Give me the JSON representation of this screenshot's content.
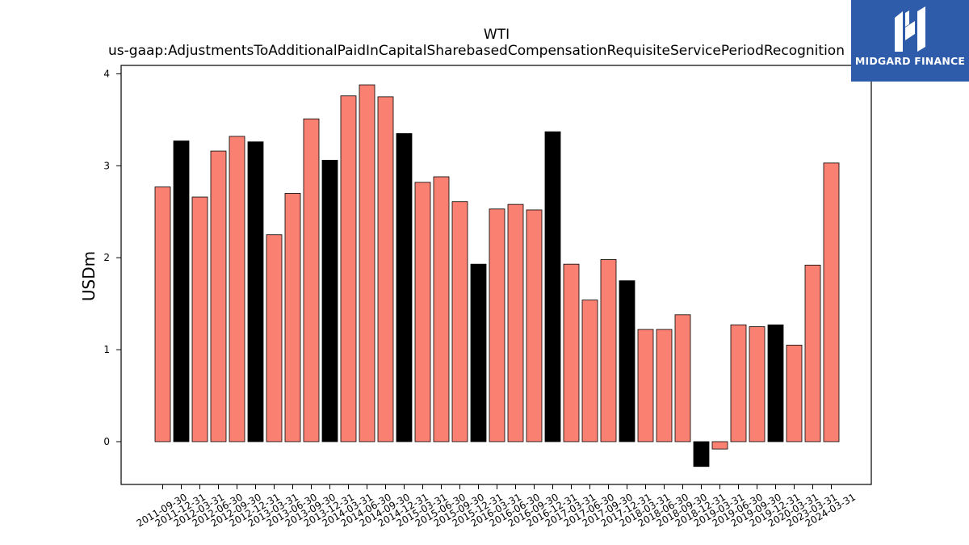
{
  "chart_data": {
    "type": "bar",
    "title": "WTI",
    "subtitle": "us-gaap:AdjustmentsToAdditionalPaidInCapitalSharebasedCompensationRequisiteServicePeriodRecognition",
    "ylabel": "USDm",
    "xlabel": "",
    "ylim": [
      -0.47,
      4.1
    ],
    "yticks": [
      0,
      1,
      2,
      3,
      4
    ],
    "colors": {
      "default": "#fa8072",
      "highlight": "#000000",
      "edge": "#000000"
    },
    "categories": [
      "2011-09-30",
      "2011-12-31",
      "2012-03-31",
      "2012-06-30",
      "2012-09-30",
      "2012-12-31",
      "2013-03-31",
      "2013-06-30",
      "2013-09-30",
      "2013-12-31",
      "2014-03-31",
      "2014-06-30",
      "2014-09-30",
      "2014-12-31",
      "2015-03-31",
      "2015-06-30",
      "2015-09-30",
      "2015-12-31",
      "2016-03-31",
      "2016-06-30",
      "2016-09-30",
      "2016-12-31",
      "2017-03-31",
      "2017-06-30",
      "2017-09-30",
      "2017-12-31",
      "2018-03-31",
      "2018-06-30",
      "2018-09-30",
      "2018-12-31",
      "2019-03-31",
      "2019-06-30",
      "2019-09-30",
      "2019-12-31",
      "2020-03-31",
      "2023-03-31",
      "2024-03-31"
    ],
    "values": [
      2.77,
      3.27,
      2.66,
      3.16,
      3.32,
      3.26,
      2.25,
      2.7,
      3.51,
      3.06,
      3.76,
      3.88,
      3.75,
      3.35,
      2.82,
      2.88,
      2.61,
      1.93,
      2.53,
      2.58,
      2.52,
      3.37,
      1.93,
      1.54,
      1.98,
      1.75,
      1.22,
      1.22,
      1.38,
      -0.27,
      -0.08,
      1.27,
      1.25,
      1.27,
      1.05,
      1.92,
      3.03
    ],
    "highlight": [
      1,
      5,
      9,
      13,
      17,
      21,
      25,
      29,
      33
    ]
  },
  "logo": {
    "text": "MIDGARD FINANCE"
  }
}
